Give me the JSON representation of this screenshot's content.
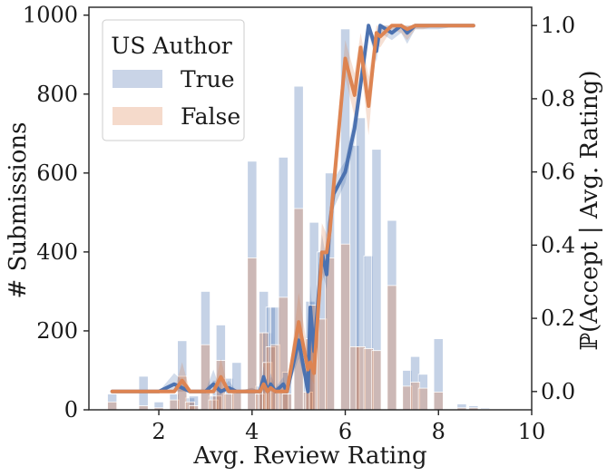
{
  "chart_data": {
    "type": "bar+line",
    "title": "",
    "xlabel": "Avg. Review Rating",
    "ylabel_left": "# Submissions",
    "ylabel_right": "ℙ(Accept | Avg. Rating)",
    "xlim": [
      0.5,
      10
    ],
    "ylim_left": [
      0,
      1020
    ],
    "ylim_right": [
      -0.05,
      1.05
    ],
    "xticks": [
      "2",
      "4",
      "6",
      "8",
      "10"
    ],
    "yticks_left": [
      "0",
      "200",
      "400",
      "600",
      "800",
      "1000"
    ],
    "yticks_right": [
      "0.0",
      "0.2",
      "0.4",
      "0.6",
      "0.8",
      "1.0"
    ],
    "legend": {
      "title": "US Author",
      "placement": "top-left",
      "entries": [
        {
          "label": "True",
          "color": "#4c72b0"
        },
        {
          "label": "False",
          "color": "#dd8452"
        }
      ]
    },
    "hist_bin_width": 0.2,
    "hist_true": [
      [
        1.0,
        40
      ],
      [
        1.67,
        85
      ],
      [
        2.0,
        20
      ],
      [
        2.33,
        40
      ],
      [
        2.5,
        175
      ],
      [
        2.67,
        30
      ],
      [
        2.75,
        35
      ],
      [
        3.0,
        300
      ],
      [
        3.17,
        35
      ],
      [
        3.25,
        75
      ],
      [
        3.33,
        215
      ],
      [
        3.5,
        80
      ],
      [
        3.67,
        120
      ],
      [
        4.0,
        630
      ],
      [
        4.17,
        60
      ],
      [
        4.25,
        300
      ],
      [
        4.33,
        195
      ],
      [
        4.4,
        260
      ],
      [
        4.5,
        260
      ],
      [
        4.67,
        640
      ],
      [
        4.75,
        95
      ],
      [
        5.0,
        820
      ],
      [
        5.2,
        105
      ],
      [
        5.25,
        275
      ],
      [
        5.33,
        475
      ],
      [
        5.5,
        400
      ],
      [
        5.67,
        600
      ],
      [
        6.0,
        965
      ],
      [
        6.2,
        670
      ],
      [
        6.33,
        740
      ],
      [
        6.5,
        390
      ],
      [
        6.67,
        660
      ],
      [
        7.0,
        480
      ],
      [
        7.33,
        100
      ],
      [
        7.5,
        135
      ],
      [
        7.67,
        90
      ],
      [
        8.0,
        180
      ],
      [
        8.5,
        15
      ],
      [
        8.75,
        10
      ],
      [
        9.0,
        5
      ]
    ],
    "hist_false": [
      [
        1.0,
        20
      ],
      [
        1.67,
        10
      ],
      [
        2.0,
        5
      ],
      [
        2.33,
        25
      ],
      [
        2.5,
        85
      ],
      [
        2.67,
        20
      ],
      [
        2.75,
        10
      ],
      [
        3.0,
        165
      ],
      [
        3.17,
        25
      ],
      [
        3.25,
        35
      ],
      [
        3.33,
        125
      ],
      [
        3.5,
        40
      ],
      [
        3.67,
        50
      ],
      [
        4.0,
        385
      ],
      [
        4.17,
        40
      ],
      [
        4.25,
        195
      ],
      [
        4.33,
        120
      ],
      [
        4.4,
        160
      ],
      [
        4.5,
        165
      ],
      [
        4.67,
        285
      ],
      [
        4.75,
        40
      ],
      [
        5.0,
        510
      ],
      [
        5.2,
        45
      ],
      [
        5.25,
        180
      ],
      [
        5.33,
        265
      ],
      [
        5.5,
        230
      ],
      [
        5.67,
        385
      ],
      [
        6.0,
        420
      ],
      [
        6.2,
        160
      ],
      [
        6.33,
        160
      ],
      [
        6.5,
        155
      ],
      [
        6.67,
        150
      ],
      [
        7.0,
        315
      ],
      [
        7.33,
        60
      ],
      [
        7.5,
        70
      ],
      [
        7.67,
        55
      ],
      [
        8.0,
        45
      ],
      [
        8.5,
        5
      ],
      [
        8.75,
        5
      ],
      [
        9.0,
        2
      ]
    ],
    "series": [
      {
        "name": "True",
        "color": "#4c72b0",
        "x": [
          1.0,
          2.0,
          2.33,
          2.5,
          2.67,
          3.0,
          3.17,
          3.33,
          3.5,
          3.67,
          4.0,
          4.17,
          4.25,
          4.33,
          4.4,
          4.5,
          4.67,
          4.75,
          5.0,
          5.2,
          5.25,
          5.33,
          5.5,
          5.6,
          5.67,
          5.75,
          6.0,
          6.2,
          6.33,
          6.5,
          6.67,
          6.75,
          7.0,
          7.2,
          7.33,
          7.5,
          7.67,
          8.0,
          8.5,
          8.75
        ],
        "y": [
          0.0,
          0.0,
          0.02,
          0.01,
          0.0,
          0.0,
          0.02,
          0.0,
          0.01,
          0.0,
          0.0,
          0.0,
          0.04,
          0.0,
          0.02,
          0.0,
          0.02,
          0.0,
          0.14,
          0.0,
          0.23,
          0.11,
          0.38,
          0.32,
          0.46,
          0.54,
          0.6,
          0.72,
          0.84,
          1.0,
          0.93,
          1.0,
          0.98,
          1.0,
          0.98,
          1.0,
          1.0,
          1.0,
          1.0,
          1.0
        ],
        "ci_low": [
          0.0,
          0.0,
          0.0,
          0.0,
          0.0,
          0.0,
          0.0,
          0.0,
          0.0,
          0.0,
          0.0,
          0.0,
          0.0,
          0.0,
          0.0,
          0.0,
          0.0,
          0.0,
          0.09,
          0.0,
          0.17,
          0.06,
          0.33,
          0.28,
          0.42,
          0.5,
          0.57,
          0.68,
          0.8,
          0.98,
          0.9,
          0.98,
          0.96,
          0.98,
          0.95,
          0.99,
          0.99,
          0.99,
          1.0,
          1.0
        ],
        "ci_high": [
          0.0,
          0.0,
          0.05,
          0.03,
          0.0,
          0.0,
          0.06,
          0.0,
          0.03,
          0.0,
          0.01,
          0.0,
          0.07,
          0.0,
          0.05,
          0.01,
          0.04,
          0.0,
          0.18,
          0.0,
          0.29,
          0.16,
          0.43,
          0.36,
          0.5,
          0.58,
          0.63,
          0.76,
          0.88,
          1.0,
          0.96,
          1.0,
          1.0,
          1.0,
          1.0,
          1.0,
          1.0,
          1.0,
          1.0,
          1.0
        ]
      },
      {
        "name": "False",
        "color": "#dd8452",
        "x": [
          1.0,
          2.0,
          2.33,
          2.5,
          2.67,
          3.0,
          3.17,
          3.33,
          3.5,
          3.67,
          4.0,
          4.17,
          4.25,
          4.33,
          4.4,
          4.5,
          4.67,
          4.75,
          5.0,
          5.2,
          5.25,
          5.33,
          5.5,
          5.6,
          5.67,
          5.75,
          6.0,
          6.2,
          6.33,
          6.5,
          6.67,
          6.75,
          7.0,
          7.2,
          7.33,
          7.5,
          7.67,
          8.0,
          8.5,
          8.75
        ],
        "y": [
          0.0,
          0.0,
          0.0,
          0.03,
          0.0,
          0.0,
          0.0,
          0.04,
          0.0,
          0.0,
          0.0,
          0.0,
          0.02,
          0.0,
          0.01,
          0.0,
          0.0,
          0.0,
          0.19,
          0.06,
          0.08,
          0.05,
          0.38,
          0.38,
          0.44,
          0.56,
          0.91,
          0.81,
          0.94,
          0.78,
          0.98,
          0.97,
          1.0,
          1.0,
          0.99,
          1.0,
          1.0,
          1.0,
          1.0,
          1.0
        ],
        "ci_low": [
          0.0,
          0.0,
          0.0,
          0.0,
          0.0,
          0.0,
          0.0,
          0.0,
          0.0,
          0.0,
          0.0,
          0.0,
          0.0,
          0.0,
          0.0,
          0.0,
          0.0,
          0.0,
          0.12,
          0.02,
          0.04,
          0.02,
          0.3,
          0.33,
          0.37,
          0.5,
          0.86,
          0.75,
          0.9,
          0.7,
          0.95,
          0.94,
          0.99,
          0.98,
          0.96,
          0.99,
          0.99,
          1.0,
          1.0,
          1.0
        ],
        "ci_high": [
          0.0,
          0.0,
          0.0,
          0.08,
          0.0,
          0.0,
          0.0,
          0.09,
          0.0,
          0.0,
          0.01,
          0.0,
          0.05,
          0.0,
          0.04,
          0.0,
          0.02,
          0.0,
          0.27,
          0.11,
          0.13,
          0.1,
          0.46,
          0.43,
          0.51,
          0.62,
          0.96,
          0.87,
          0.98,
          0.86,
          1.0,
          1.0,
          1.0,
          1.0,
          1.0,
          1.0,
          1.0,
          1.0,
          1.0,
          1.0
        ]
      }
    ]
  }
}
